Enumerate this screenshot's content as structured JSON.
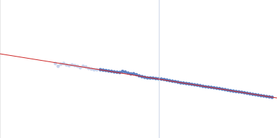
{
  "chart_data": {
    "type": "scatter",
    "xlim": [
      0,
      400
    ],
    "ylim": [
      0,
      200
    ],
    "tick_labels": false,
    "grid": false,
    "series": [
      {
        "type": "line",
        "color": "#d0d8e8",
        "marker": "none",
        "line_style": "solid",
        "x": [
          230,
          230
        ],
        "values": [
          0,
          200
        ]
      },
      {
        "type": "scatter",
        "color": "#b9c7e6",
        "marker": "circle",
        "x": [
          80,
          84,
          88,
          92,
          96,
          100,
          104,
          108,
          112,
          116,
          120,
          124,
          128,
          132,
          136,
          140
        ],
        "values": [
          108,
          104,
          107,
          108,
          106,
          105,
          106,
          105,
          104,
          102,
          104,
          103,
          101,
          100,
          99,
          99
        ]
      },
      {
        "type": "scatter",
        "color": "#3a62b0",
        "marker": "circle",
        "x": [
          145,
          149,
          153,
          157,
          161,
          165,
          169,
          173,
          177,
          181,
          185,
          189,
          193,
          197,
          201,
          205,
          209,
          213,
          217,
          221,
          225,
          229,
          233,
          237,
          241,
          245,
          249,
          253,
          257,
          261,
          265,
          269,
          273,
          277,
          281,
          285,
          289,
          293,
          297,
          301,
          305,
          309,
          313,
          317,
          321,
          325,
          329,
          333,
          337,
          341,
          345,
          349,
          353,
          357,
          361,
          365,
          369,
          373,
          377,
          381,
          385,
          389,
          393
        ],
        "values": [
          99.0,
          98.4,
          97.8,
          97.2,
          96.6,
          95.9,
          95.4,
          95.0,
          96.5,
          95.6,
          94.2,
          93.0,
          93.2,
          91.8,
          90.2,
          89.0,
          88.0,
          87.2,
          87.0,
          86.8,
          86.2,
          85.8,
          85.4,
          84.8,
          84.0,
          83.2,
          82.4,
          81.8,
          81.0,
          80.0,
          79.6,
          79.0,
          78.5,
          77.8,
          77.2,
          76.6,
          75.9,
          75.0,
          74.3,
          73.9,
          73.4,
          72.8,
          72.2,
          71.6,
          70.8,
          70.1,
          69.3,
          68.6,
          68.0,
          67.4,
          66.9,
          66.3,
          65.6,
          64.9,
          64.1,
          63.4,
          62.8,
          62.1,
          61.4,
          60.8,
          60.2,
          59.6,
          59.0
        ]
      },
      {
        "type": "line",
        "color": "#cc2222",
        "marker": "none",
        "line_style": "solid",
        "x": [
          0,
          400
        ],
        "values": [
          122,
          58
        ]
      }
    ]
  }
}
